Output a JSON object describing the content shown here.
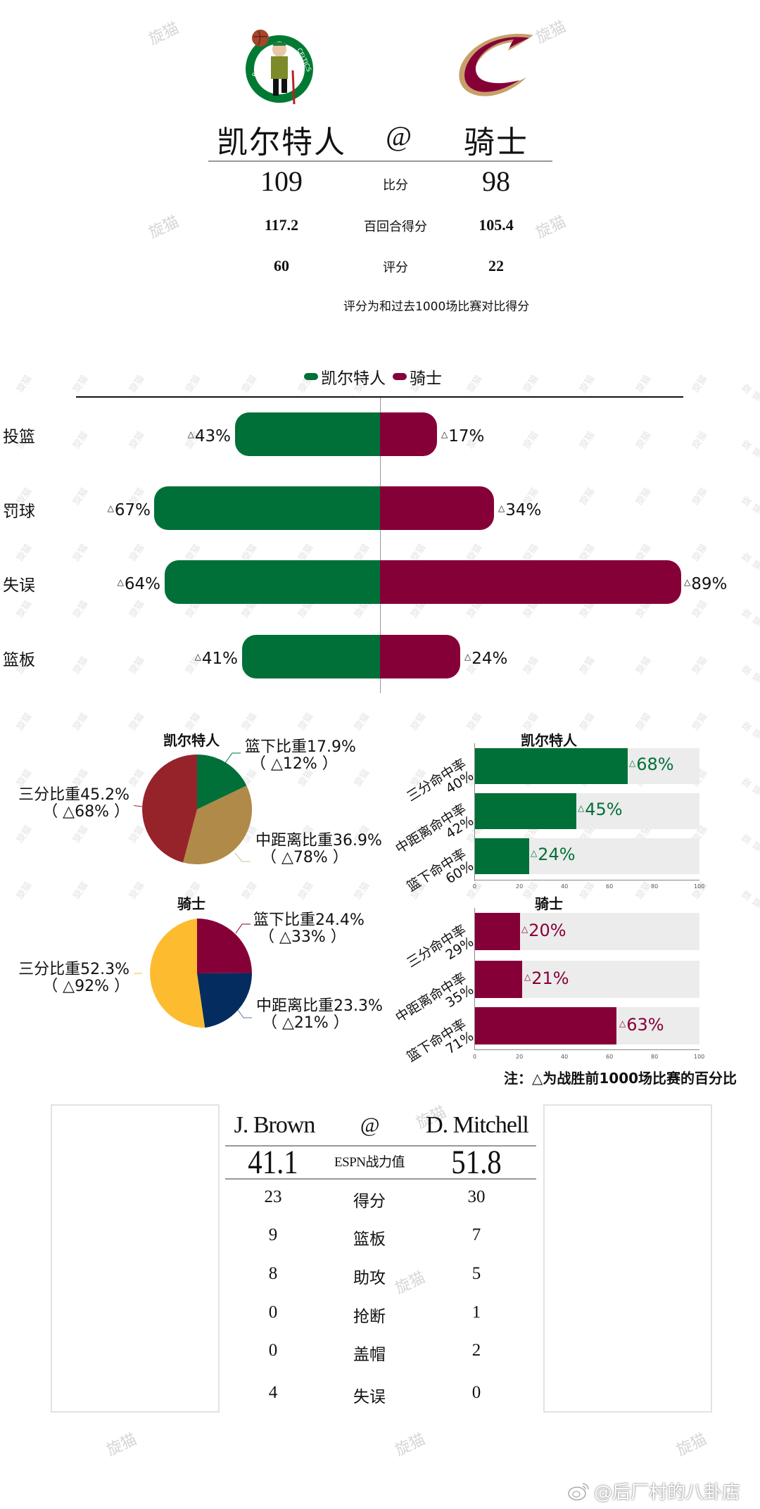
{
  "header": {
    "home_team": "凯尔特人",
    "at": "@",
    "away_team": "骑士",
    "rows": [
      {
        "label": "比分",
        "home": "109",
        "away": "98"
      },
      {
        "label": "百回合得分",
        "home": "117.2",
        "away": "105.4"
      },
      {
        "label": "评分",
        "home": "60",
        "away": "22"
      }
    ],
    "footnote": "评分为和过去1000场比赛对比得分",
    "logos": {
      "home": "celtics-logo",
      "away": "cavaliers-logo"
    }
  },
  "colors": {
    "celtics_green": "#007038",
    "cavs_wine": "#860038",
    "celtics_tan": "#B08A48",
    "celtics_red": "#97232A",
    "cavs_navy": "#052C5F",
    "cavs_gold": "#FDBB30",
    "track": "#ECECEC"
  },
  "legend": {
    "home": "凯尔特人",
    "away": "骑士"
  },
  "triangle": "△",
  "diverging": {
    "rows": [
      {
        "label": "投篮",
        "home": "43%",
        "away": "17%"
      },
      {
        "label": "罚球",
        "home": "67%",
        "away": "34%"
      },
      {
        "label": "失误",
        "home": "64%",
        "away": "89%"
      },
      {
        "label": "篮板",
        "home": "41%",
        "away": "24%"
      }
    ]
  },
  "pies": {
    "home": {
      "title": "凯尔特人",
      "slices": [
        {
          "label": "篮下比重17.9%",
          "sub": "（ △12% ）"
        },
        {
          "label": "中距离比重36.9%",
          "sub": "（ △78% ）"
        },
        {
          "label": "三分比重45.2%",
          "sub": "（ △68% ）"
        }
      ]
    },
    "away": {
      "title": "骑士",
      "slices": [
        {
          "label": "篮下比重24.4%",
          "sub": "（ △33% ）"
        },
        {
          "label": "中距离比重23.3%",
          "sub": "（ △21% ）"
        },
        {
          "label": "三分比重52.3%",
          "sub": "（ △92% ）"
        }
      ]
    }
  },
  "hbars": {
    "home": {
      "title": "凯尔特人",
      "rows": [
        {
          "label": "三分命中率",
          "pct": "40%",
          "value": "68%"
        },
        {
          "label": "中距离命中率",
          "pct": "42%",
          "value": "45%"
        },
        {
          "label": "篮下命中率",
          "pct": "60%",
          "value": "24%"
        }
      ]
    },
    "away": {
      "title": "骑士",
      "rows": [
        {
          "label": "三分命中率",
          "pct": "29%",
          "value": "20%"
        },
        {
          "label": "中距离命中率",
          "pct": "35%",
          "value": "21%"
        },
        {
          "label": "篮下命中率",
          "pct": "71%",
          "value": "63%"
        }
      ]
    },
    "ticks": [
      "0",
      "20",
      "40",
      "60",
      "80",
      "100"
    ],
    "note": "注：△为战胜前1000场比赛的百分比"
  },
  "players": {
    "home_name": "J. Brown",
    "at": "@",
    "away_name": "D. Mitchell",
    "espn_label": "ESPN战力值",
    "home_espn": "41.1",
    "away_espn": "51.8",
    "stats": [
      {
        "label": "得分",
        "home": "23",
        "away": "30"
      },
      {
        "label": "篮板",
        "home": "9",
        "away": "7"
      },
      {
        "label": "助攻",
        "home": "8",
        "away": "5"
      },
      {
        "label": "抢断",
        "home": "0",
        "away": "1"
      },
      {
        "label": "盖帽",
        "home": "0",
        "away": "2"
      },
      {
        "label": "失误",
        "home": "4",
        "away": "0"
      }
    ]
  },
  "watermarks": {
    "site": "旋猫",
    "credit": "@后厂村的八卦店"
  },
  "chart_data": [
    {
      "type": "bar",
      "title": "",
      "orientation": "horizontal-diverging",
      "categories": [
        "投篮",
        "罚球",
        "失误",
        "篮板"
      ],
      "series": [
        {
          "name": "凯尔特人",
          "values": [
            43,
            67,
            64,
            41
          ]
        },
        {
          "name": "骑士",
          "values": [
            17,
            34,
            89,
            24
          ]
        }
      ],
      "legend_position": "top",
      "unit": "% (△ vs past 1000 games)"
    },
    {
      "type": "pie",
      "title": "凯尔特人",
      "categories": [
        "篮下比重",
        "中距离比重",
        "三分比重"
      ],
      "values": [
        17.9,
        36.9,
        45.2
      ],
      "annotations": [
        "△12%",
        "△78%",
        "△68%"
      ]
    },
    {
      "type": "pie",
      "title": "骑士",
      "categories": [
        "篮下比重",
        "中距离比重",
        "三分比重"
      ],
      "values": [
        24.4,
        23.3,
        52.3
      ],
      "annotations": [
        "△33%",
        "△21%",
        "△92%"
      ]
    },
    {
      "type": "bar",
      "title": "凯尔特人",
      "orientation": "horizontal",
      "categories": [
        "三分命中率 40%",
        "中距离命中率 42%",
        "篮下命中率 60%"
      ],
      "values": [
        68,
        45,
        24
      ],
      "xlim": [
        0,
        100
      ],
      "xticks": [
        0,
        20,
        40,
        60,
        80,
        100
      ]
    },
    {
      "type": "bar",
      "title": "骑士",
      "orientation": "horizontal",
      "categories": [
        "三分命中率 29%",
        "中距离命中率 35%",
        "篮下命中率 71%"
      ],
      "values": [
        20,
        21,
        63
      ],
      "xlim": [
        0,
        100
      ],
      "xticks": [
        0,
        20,
        40,
        60,
        80,
        100
      ]
    },
    {
      "type": "table",
      "title": "J. Brown @ D. Mitchell",
      "columns": [
        "J. Brown",
        "stat",
        "D. Mitchell"
      ],
      "rows": [
        [
          "41.1",
          "ESPN战力值",
          "51.8"
        ],
        [
          "23",
          "得分",
          "30"
        ],
        [
          "9",
          "篮板",
          "7"
        ],
        [
          "8",
          "助攻",
          "5"
        ],
        [
          "0",
          "抢断",
          "1"
        ],
        [
          "0",
          "盖帽",
          "2"
        ],
        [
          "4",
          "失误",
          "0"
        ]
      ]
    }
  ]
}
